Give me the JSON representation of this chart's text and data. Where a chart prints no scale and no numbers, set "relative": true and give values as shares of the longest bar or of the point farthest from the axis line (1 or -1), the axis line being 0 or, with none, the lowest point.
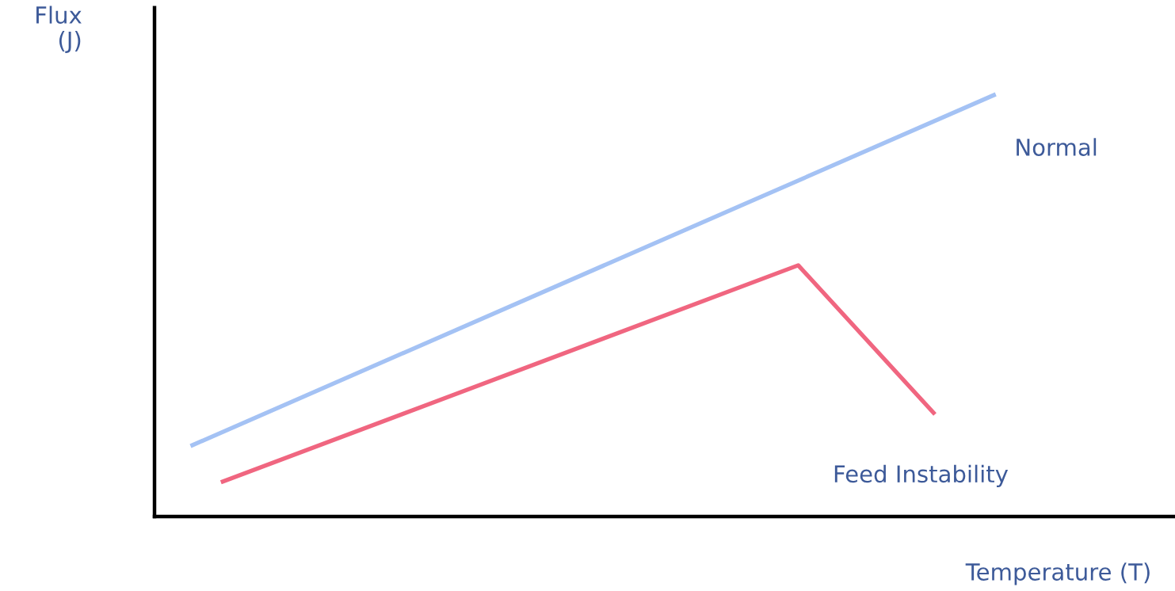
{
  "chart_data": {
    "type": "line",
    "relative": true,
    "xlabel": "Temperature (T)",
    "ylabel": "Flux\n(J)",
    "tick_labels": false,
    "categories": [
      null,
      null,
      null,
      null,
      null,
      null,
      null,
      null,
      null,
      null,
      null,
      null,
      null,
      null,
      null,
      null,
      null,
      null,
      null,
      null,
      null,
      null,
      null,
      null,
      null,
      null,
      null,
      null,
      null,
      null,
      null,
      null,
      null,
      null,
      null,
      null,
      null,
      null,
      null,
      null,
      null,
      null,
      null,
      null,
      null,
      null,
      null,
      null,
      null,
      null,
      null,
      null,
      null,
      null
    ],
    "series": [
      {
        "name": "Normal",
        "color": "#a4c2f4",
        "values": [
          0.167,
          null,
          null,
          null,
          null,
          null,
          null,
          null,
          null,
          null,
          null,
          null,
          null,
          null,
          null,
          null,
          null,
          null,
          null,
          null,
          null,
          null,
          null,
          null,
          null,
          null,
          null,
          null,
          null,
          null,
          null,
          null,
          null,
          null,
          null,
          null,
          null,
          null,
          null,
          null,
          null,
          null,
          null,
          null,
          null,
          null,
          null,
          null,
          null,
          null,
          null,
          null,
          null,
          1
        ]
      },
      {
        "name": "Feed Instability",
        "color": "#f06680",
        "values": [
          null,
          null,
          0.081,
          null,
          null,
          null,
          null,
          null,
          null,
          null,
          null,
          null,
          null,
          null,
          null,
          null,
          null,
          null,
          null,
          null,
          null,
          null,
          null,
          null,
          null,
          null,
          null,
          null,
          null,
          null,
          null,
          null,
          null,
          null,
          null,
          null,
          null,
          null,
          null,
          null,
          0.595,
          null,
          null,
          null,
          null,
          null,
          null,
          null,
          null,
          0.242,
          null,
          null,
          null,
          null
        ]
      }
    ]
  }
}
